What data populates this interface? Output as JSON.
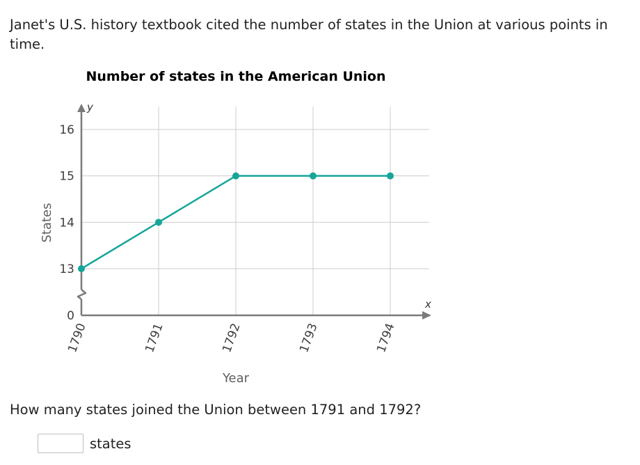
{
  "prompt": {
    "intro": "Janet's U.S. history textbook cited the number of states in the Union at various points in time.",
    "question": "How many states joined the Union between 1791 and 1792?"
  },
  "answer": {
    "value": "",
    "unit": "states"
  },
  "chart_data": {
    "type": "line",
    "title": "Number of states in the American Union",
    "xlabel": "Year",
    "ylabel": "States",
    "x_axis_symbol": "x",
    "y_axis_symbol": "y",
    "categories": [
      "1790",
      "1791",
      "1792",
      "1793",
      "1794"
    ],
    "values": [
      13,
      14,
      15,
      15,
      15
    ],
    "y_ticks": [
      13,
      14,
      15,
      16
    ],
    "y_origin_label": "0",
    "ylim": [
      13,
      16
    ],
    "y_axis_break": true,
    "grid": true,
    "colors": {
      "line": "#16a59a",
      "grid": "#cccccc",
      "axis": "#7a7a7a",
      "title": "#5f5f5f",
      "label": "#5f5f5f",
      "tick": "#404040"
    }
  }
}
